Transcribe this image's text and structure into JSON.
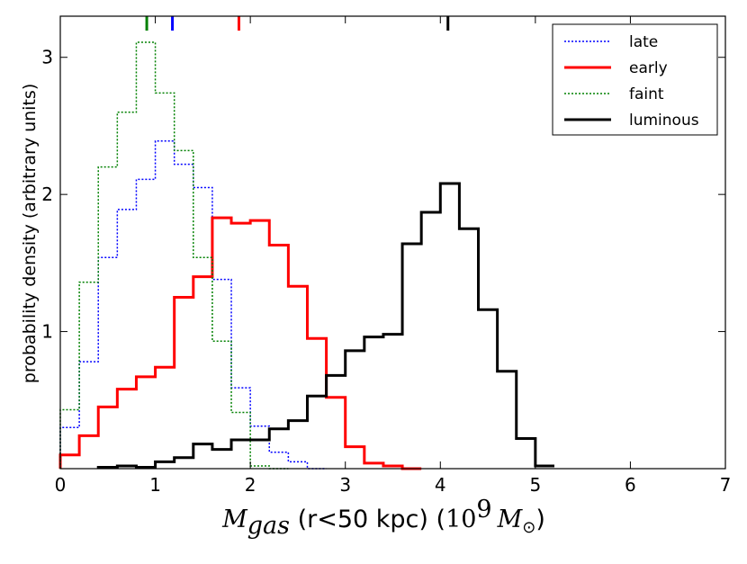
{
  "chart_data": {
    "type": "step-histogram",
    "title": "",
    "xlabel": {
      "symbol": "M",
      "subscript": "gas",
      "middle": " (r<50 kpc) (",
      "unit_power": "10",
      "unit_exp": "9",
      "unit_symbol": "M",
      "unit_sub": "⊙",
      "end": ")"
    },
    "ylabel": "probability density (arbitrary units)",
    "xlim": [
      0,
      7
    ],
    "ylim": [
      0,
      3.3
    ],
    "xticks": [
      0,
      1,
      2,
      3,
      4,
      5,
      6,
      7
    ],
    "xtick_labels": [
      "0",
      "1",
      "2",
      "3",
      "4",
      "5",
      "6",
      "7"
    ],
    "yticks": [
      1,
      2,
      3
    ],
    "ytick_labels": [
      "1",
      "2",
      "3"
    ],
    "bin_width": 0.2,
    "legend_position": "top-right",
    "series": [
      {
        "name": "late",
        "color": "#0000ff",
        "style": "dotted",
        "stroke": 1.5,
        "bin_start": 0,
        "values": [
          0.3,
          0.78,
          1.54,
          1.89,
          2.11,
          2.39,
          2.22,
          2.05,
          1.38,
          0.59,
          0.31,
          0.12,
          0.05,
          0
        ]
      },
      {
        "name": "early",
        "color": "#ff0000",
        "style": "solid",
        "stroke": 3,
        "bin_start": 0,
        "values": [
          0.1,
          0.24,
          0.45,
          0.58,
          0.67,
          0.74,
          1.25,
          1.4,
          1.83,
          1.79,
          1.81,
          1.63,
          1.33,
          0.95,
          0.52,
          0.16,
          0.04,
          0.02,
          0
        ]
      },
      {
        "name": "faint",
        "color": "#008000",
        "style": "dotted",
        "stroke": 1.5,
        "bin_start": 0,
        "values": [
          0.43,
          1.36,
          2.2,
          2.6,
          3.11,
          2.74,
          2.32,
          1.54,
          0.93,
          0.41,
          0.02,
          0
        ]
      },
      {
        "name": "luminous",
        "color": "#000000",
        "style": "solid",
        "stroke": 3,
        "bin_start": 0.4,
        "values": [
          0.01,
          0.02,
          0.01,
          0.05,
          0.08,
          0.18,
          0.14,
          0.21,
          0.21,
          0.29,
          0.35,
          0.53,
          0.68,
          0.86,
          0.96,
          0.98,
          1.64,
          1.87,
          2.08,
          1.75,
          1.16,
          0.71,
          0.22,
          0.02
        ]
      }
    ],
    "top_markers": [
      {
        "series": "faint",
        "x": 0.91,
        "color": "#008000"
      },
      {
        "series": "late",
        "x": 1.18,
        "color": "#0000ff"
      },
      {
        "series": "early",
        "x": 1.88,
        "color": "#ff0000"
      },
      {
        "series": "luminous",
        "x": 4.08,
        "color": "#000000"
      }
    ]
  }
}
